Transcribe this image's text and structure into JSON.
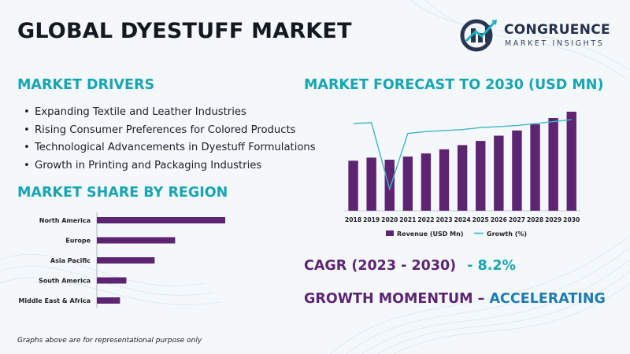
{
  "title": "GLOBAL DYESTUFF MARKET",
  "logo": {
    "name": "CONGRUENCE",
    "tagline": "MARKET INSIGHTS",
    "icon": "cm-logo-icon"
  },
  "drivers": {
    "heading": "MARKET DRIVERS",
    "items": [
      "Expanding Textile and Leather Industries",
      "Rising Consumer Preferences for Colored Products",
      "Technological Advancements in Dyestuff Formulations",
      "Growth in Printing and Packaging Industries"
    ]
  },
  "share": {
    "heading": "MARKET SHARE BY REGION"
  },
  "forecast": {
    "heading": "MARKET FORECAST TO 2030 (USD MN)"
  },
  "cagr": {
    "label": "CAGR (2023 - 2030)",
    "value": "- 8.2%"
  },
  "momentum": {
    "label": "GROWTH MOMENTUM",
    "dash": "–",
    "value": "ACCELERATING"
  },
  "footnote": "Graphs above are for representational purpose only",
  "colors": {
    "purple": "#5d2472",
    "teal": "#17a5b3",
    "blue": "#1f7cb0",
    "line": "#3fb6c6"
  },
  "chart_data": [
    {
      "type": "bar",
      "orientation": "horizontal",
      "categories": [
        "North America",
        "Europe",
        "Asia Pacific",
        "South America",
        "Middle East & Africa"
      ],
      "values": [
        100,
        61,
        45,
        23,
        18
      ],
      "grid": false
    },
    {
      "type": "bar",
      "categories": [
        "2018",
        "2019",
        "2020",
        "2021",
        "2022",
        "2023",
        "2024",
        "2025",
        "2026",
        "2027",
        "2028",
        "2029",
        "2030"
      ],
      "series": [
        {
          "name": "Revenue (USD Mn)",
          "type": "bar",
          "values": [
            48,
            51,
            49,
            52,
            55,
            59,
            63,
            67,
            72,
            77,
            83,
            89,
            95
          ]
        },
        {
          "name": "Growth (%)",
          "type": "line",
          "values": [
            88,
            89,
            22,
            78,
            80,
            81,
            82,
            84,
            85,
            86,
            88,
            90,
            92
          ]
        }
      ],
      "legend": "bottom",
      "grid": false
    }
  ]
}
